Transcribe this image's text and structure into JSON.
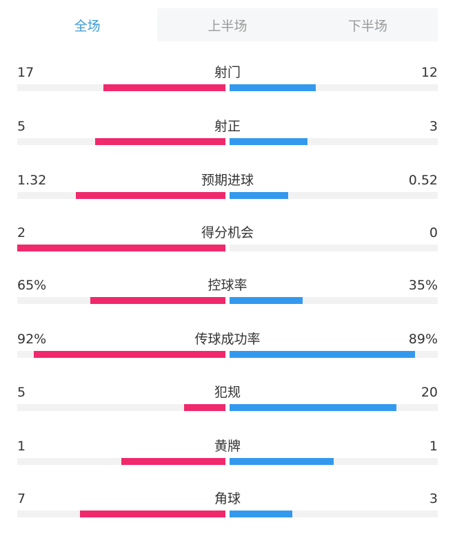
{
  "tabs": [
    {
      "label": "全场",
      "active": true
    },
    {
      "label": "上半场",
      "active": false
    },
    {
      "label": "下半场",
      "active": false
    }
  ],
  "colors": {
    "home": "#f0286c",
    "away": "#3399ee",
    "active_tab": "#3a9bd5"
  },
  "stats": [
    {
      "label": "射门",
      "home": "17",
      "away": "12",
      "home_fill": 0.586,
      "away_fill": 0.414
    },
    {
      "label": "射正",
      "home": "5",
      "away": "3",
      "home_fill": 0.625,
      "away_fill": 0.375
    },
    {
      "label": "预期进球",
      "home": "1.32",
      "away": "0.52",
      "home_fill": 0.717,
      "away_fill": 0.283
    },
    {
      "label": "得分机会",
      "home": "2",
      "away": "0",
      "home_fill": 1.0,
      "away_fill": 0.0
    },
    {
      "label": "控球率",
      "home": "65%",
      "away": "35%",
      "home_fill": 0.65,
      "away_fill": 0.35
    },
    {
      "label": "传球成功率",
      "home": "92%",
      "away": "89%",
      "home_fill": 0.92,
      "away_fill": 0.89
    },
    {
      "label": "犯规",
      "home": "5",
      "away": "20",
      "home_fill": 0.2,
      "away_fill": 0.8
    },
    {
      "label": "黄牌",
      "home": "1",
      "away": "1",
      "home_fill": 0.5,
      "away_fill": 0.5
    },
    {
      "label": "角球",
      "home": "7",
      "away": "3",
      "home_fill": 0.7,
      "away_fill": 0.3
    }
  ]
}
